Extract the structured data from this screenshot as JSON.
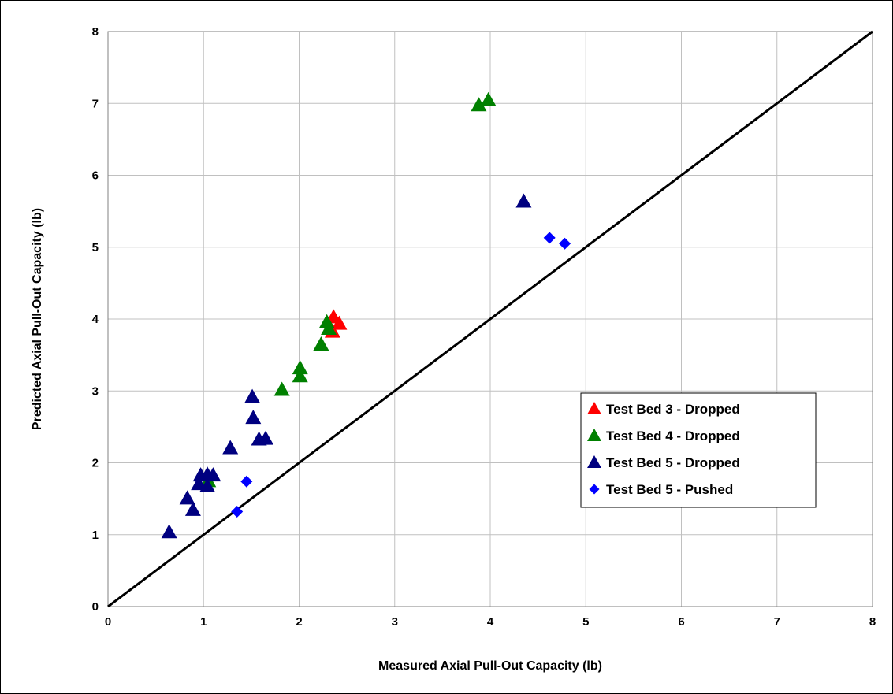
{
  "chart_data": {
    "type": "scatter",
    "title": "",
    "xlabel": "Measured Axial Pull-Out Capacity (lb)",
    "ylabel": "Predicted Axial Pull-Out Capacity (lb)",
    "xlim": [
      0,
      8
    ],
    "ylim": [
      0,
      8
    ],
    "x_ticks": [
      "0",
      "1",
      "2",
      "3",
      "4",
      "5",
      "6",
      "7",
      "8"
    ],
    "y_ticks": [
      "0",
      "1",
      "2",
      "3",
      "4",
      "5",
      "6",
      "7",
      "8"
    ],
    "grid": true,
    "legend_position": "right",
    "reference_line": {
      "from": [
        0,
        0
      ],
      "to": [
        8,
        8
      ],
      "color": "#000000"
    },
    "series": [
      {
        "name": "Test Bed 3 - Dropped",
        "marker": "triangle",
        "color": "#ff0000",
        "points": [
          [
            2.36,
            4.02
          ],
          [
            2.42,
            3.93
          ],
          [
            2.35,
            3.82
          ]
        ]
      },
      {
        "name": "Test Bed 4 - Dropped",
        "marker": "triangle",
        "color": "#008000",
        "points": [
          [
            3.98,
            7.04
          ],
          [
            3.88,
            6.97
          ],
          [
            2.29,
            3.95
          ],
          [
            2.31,
            3.86
          ],
          [
            2.23,
            3.64
          ],
          [
            2.01,
            3.31
          ],
          [
            2.01,
            3.2
          ],
          [
            1.82,
            3.01
          ],
          [
            1.05,
            1.74
          ]
        ]
      },
      {
        "name": "Test Bed 5 - Dropped",
        "marker": "triangle",
        "color": "#000080",
        "points": [
          [
            4.35,
            5.63
          ],
          [
            1.51,
            2.91
          ],
          [
            1.52,
            2.62
          ],
          [
            1.58,
            2.32
          ],
          [
            1.65,
            2.33
          ],
          [
            1.28,
            2.2
          ],
          [
            0.97,
            1.82
          ],
          [
            1.04,
            1.83
          ],
          [
            1.1,
            1.82
          ],
          [
            0.95,
            1.7
          ],
          [
            1.04,
            1.67
          ],
          [
            0.83,
            1.5
          ],
          [
            0.89,
            1.34
          ],
          [
            0.64,
            1.03
          ]
        ]
      },
      {
        "name": "Test Bed 5 - Pushed",
        "marker": "diamond",
        "color": "#0000ff",
        "points": [
          [
            4.62,
            5.13
          ],
          [
            4.78,
            5.05
          ],
          [
            1.45,
            1.74
          ],
          [
            1.35,
            1.32
          ]
        ]
      }
    ]
  }
}
